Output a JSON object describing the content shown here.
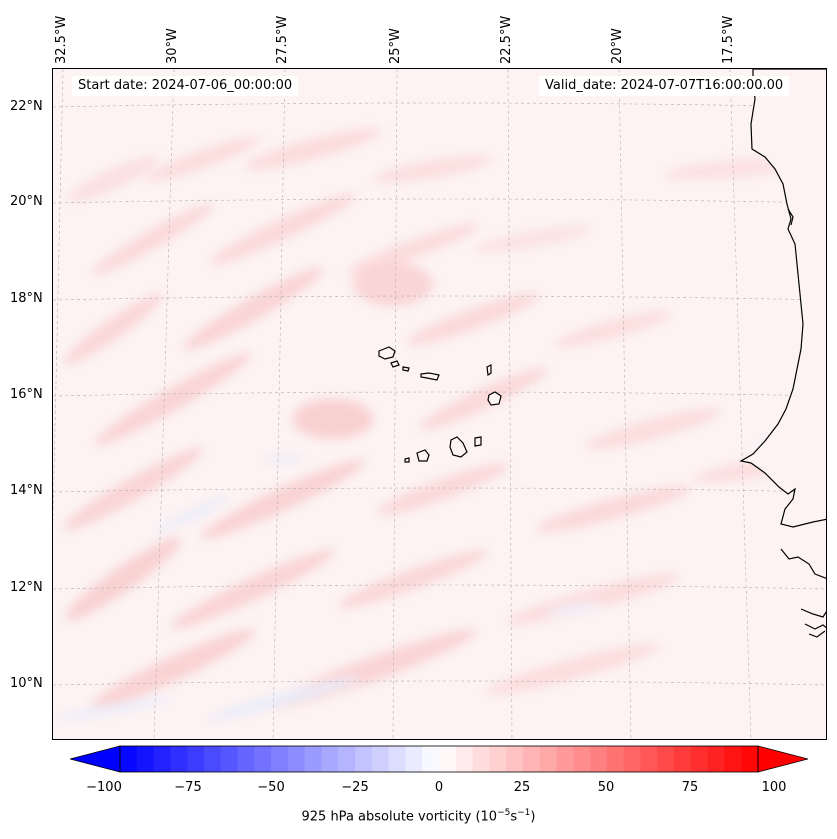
{
  "header": {
    "start_date": "Start date: 2024-07-06_00:00:00",
    "valid_date": "Valid_date: 2024-07-07T16:00:00.00"
  },
  "longitude_labels": [
    "32.5°W",
    "30°W",
    "27.5°W",
    "25°W",
    "22.5°W",
    "20°W",
    "17.5°W"
  ],
  "latitude_labels": [
    "22°N",
    "20°N",
    "18°N",
    "16°N",
    "14°N",
    "12°N",
    "10°N"
  ],
  "colorbar": {
    "ticks": [
      "−100",
      "−75",
      "−50",
      "−25",
      "0",
      "25",
      "50",
      "75",
      "100"
    ],
    "label_text": "925 hPa absolute vorticity (10",
    "label_exp1": "−5",
    "label_mid": "s",
    "label_exp2": "−1",
    "label_end": ")",
    "min_color": "#0000ff",
    "mid_color": "#ffffff",
    "max_color": "#ff0000"
  },
  "map": {
    "ocean_tint": "#fdf3f3",
    "coast_color": "#000000",
    "grid_color": "#b0b0b0"
  }
}
